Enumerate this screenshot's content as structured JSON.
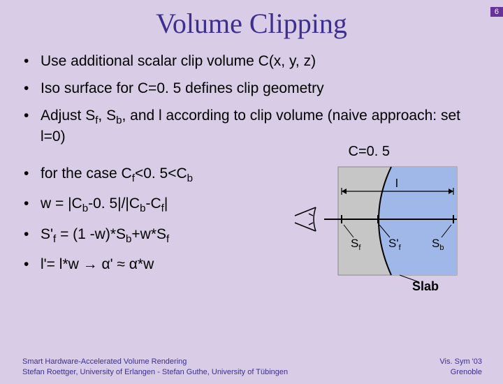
{
  "page_number": "6",
  "title": "Volume Clipping",
  "bullets_top": [
    "Use additional scalar clip volume C(x, y, z)",
    "Iso surface for C=0. 5 defines clip geometry",
    "Adjust S<sub>f</sub>, S<sub>b</sub>, and l according to clip volume (naive approach: set l=0)"
  ],
  "bullets_bottom": [
    "for the case C<sub>f</sub>&lt;0. 5&lt;C<sub>b</sub>",
    "w = |C<sub>b</sub>-0. 5|/|C<sub>b</sub>-C<sub>f</sub>|",
    "S'<sub>f</sub> = (1 -w)*S<sub>b</sub>+w*S<sub>f</sub>",
    "l'= l*w &rarr; &alpha;' &asymp; &alpha;*w"
  ],
  "c_label": "C=0. 5",
  "footer_left_l1": "Smart Hardware-Accelerated Volume Rendering",
  "footer_left_l2": "Stefan Roettger, University of Erlangen - Stefan Guthe, University of Tübingen",
  "footer_right_l1": "Vis. Sym '03",
  "footer_right_l2": "Grenoble",
  "diagram": {
    "type": "infographic",
    "background_color": "#c6c6c6",
    "curve_fill": "#9fb8e8",
    "slab_label": "Slab",
    "labels": {
      "l": "l",
      "sf": "S",
      "sf_sub": "f",
      "sfp": "S'",
      "sfp_sub": "f",
      "sb": "S",
      "sb_sub": "b"
    },
    "eye_stroke": "#000000",
    "colors": {
      "axis": "#000000",
      "tick": "#000000",
      "box_stroke": "#888888"
    }
  }
}
